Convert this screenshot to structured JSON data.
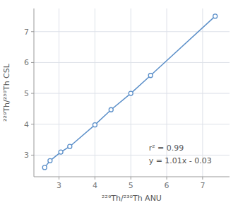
{
  "chart_data": {
    "type": "line",
    "x": [
      2.6,
      2.75,
      3.05,
      3.3,
      4.0,
      4.45,
      5.0,
      5.55,
      7.35
    ],
    "values": [
      2.6,
      2.82,
      3.1,
      3.28,
      3.98,
      4.47,
      5.0,
      5.58,
      7.5
    ],
    "color": "#5b8fc9",
    "marker": "circle",
    "xlabel": "²²⁹Th/²³⁰Th ANU",
    "ylabel": "²²⁹Th/²³⁰Th CSL",
    "xlim": [
      2.3,
      7.75
    ],
    "ylim": [
      2.3,
      7.75
    ],
    "xticks": [
      3,
      4,
      5,
      6,
      7
    ],
    "yticks": [
      3,
      4,
      5,
      6,
      7
    ],
    "grid": true,
    "annotations": [
      {
        "text": "r² = 0.99",
        "x": 5.5,
        "y": 3.1
      },
      {
        "text": "y = 1.01x - 0.03",
        "x": 5.5,
        "y": 2.68
      }
    ]
  }
}
